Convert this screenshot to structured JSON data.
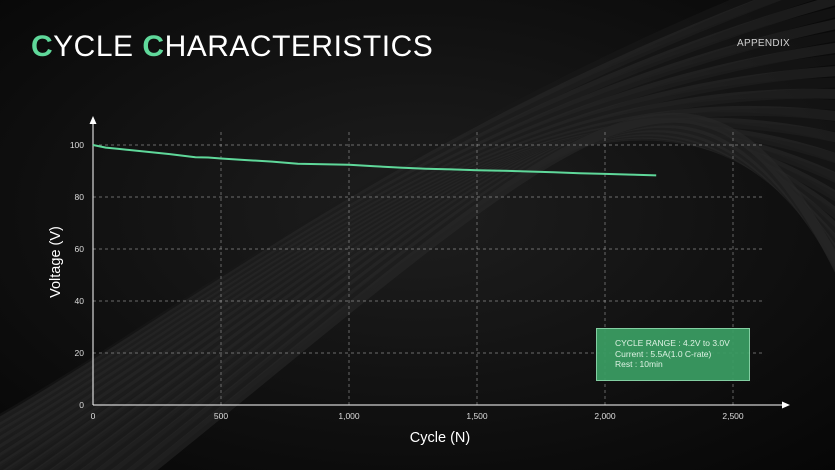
{
  "header": {
    "title_c1": "C",
    "title_rest1": "YCLE ",
    "title_c2": "C",
    "title_rest2": "HARACTERISTICS",
    "section_label": "APPENDIX"
  },
  "colors": {
    "accent": "#5fd89a",
    "line": "#5fd89a",
    "box_fill": "#3a9b62",
    "background": "#0c0c0c"
  },
  "chart_data": {
    "type": "line",
    "xlabel": "Cycle (N)",
    "ylabel": "Voltage (V)",
    "xlim": [
      0,
      2500
    ],
    "ylim": [
      0,
      100
    ],
    "x_ticks": [
      0,
      500,
      1000,
      1500,
      2000,
      2500
    ],
    "x_tick_labels": [
      "0",
      "500",
      "1,000",
      "1,500",
      "2,000",
      "2,500"
    ],
    "y_ticks": [
      0,
      20,
      40,
      60,
      80,
      100
    ],
    "y_tick_labels": [
      "0",
      "20",
      "40",
      "60",
      "80",
      "100"
    ],
    "grid": true,
    "series": [
      {
        "x": [
          0,
          50,
          100,
          200,
          300,
          400,
          450,
          500,
          600,
          700,
          800,
          900,
          1000,
          1100,
          1200,
          1300,
          1400,
          1500,
          1600,
          1700,
          1800,
          1900,
          2000,
          2100,
          2200
        ],
        "values": [
          100,
          99,
          98.5,
          97.5,
          96.5,
          95.3,
          95.2,
          94.8,
          94.2,
          93.6,
          92.8,
          92.6,
          92.4,
          91.8,
          91.3,
          90.9,
          90.6,
          90.3,
          90.1,
          89.8,
          89.5,
          89.1,
          88.9,
          88.6,
          88.3
        ]
      }
    ],
    "annotation": {
      "lines": [
        "CYCLE RANGE : 4.2V to 3.0V",
        "Current : 5.5A(1.0 C-rate)",
        "Rest : 10min"
      ]
    }
  }
}
